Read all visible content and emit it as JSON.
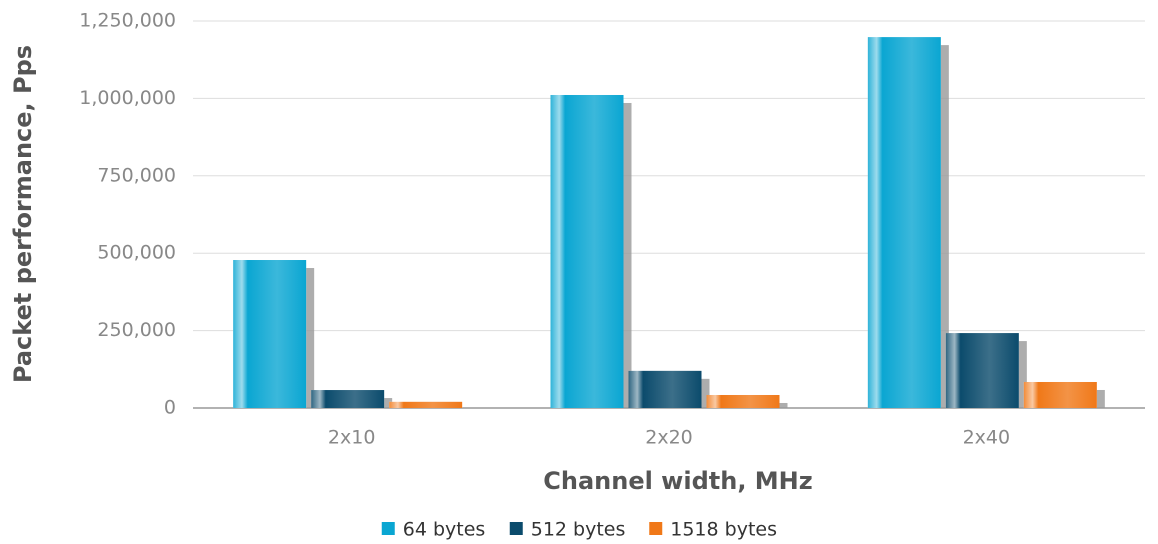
{
  "chart_data": {
    "type": "bar",
    "xlabel": "Channel width, MHz",
    "ylabel": "Packet performance, Pps",
    "categories": [
      "2x10",
      "2x20",
      "2x40"
    ],
    "series": [
      {
        "name": "64 bytes",
        "color": "#0aa6d2",
        "values": [
          478000,
          1011000,
          1198000
        ]
      },
      {
        "name": "512 bytes",
        "color": "#0b4b6c",
        "values": [
          58000,
          120000,
          242000
        ]
      },
      {
        "name": "1518 bytes",
        "color": "#f07818",
        "values": [
          20000,
          42000,
          84000
        ]
      }
    ],
    "ylim": [
      0,
      1250000
    ],
    "yticks": [
      0,
      {
        "value": 250000,
        "label": "250,000"
      },
      {
        "value": 500000,
        "label": "500,000"
      },
      {
        "value": 750000,
        "label": "750,000"
      },
      {
        "value": 1000000,
        "label": "1,000,000"
      },
      {
        "value": 1250000,
        "label": "1,250,000"
      }
    ],
    "grid": true,
    "legend": "bottom"
  }
}
